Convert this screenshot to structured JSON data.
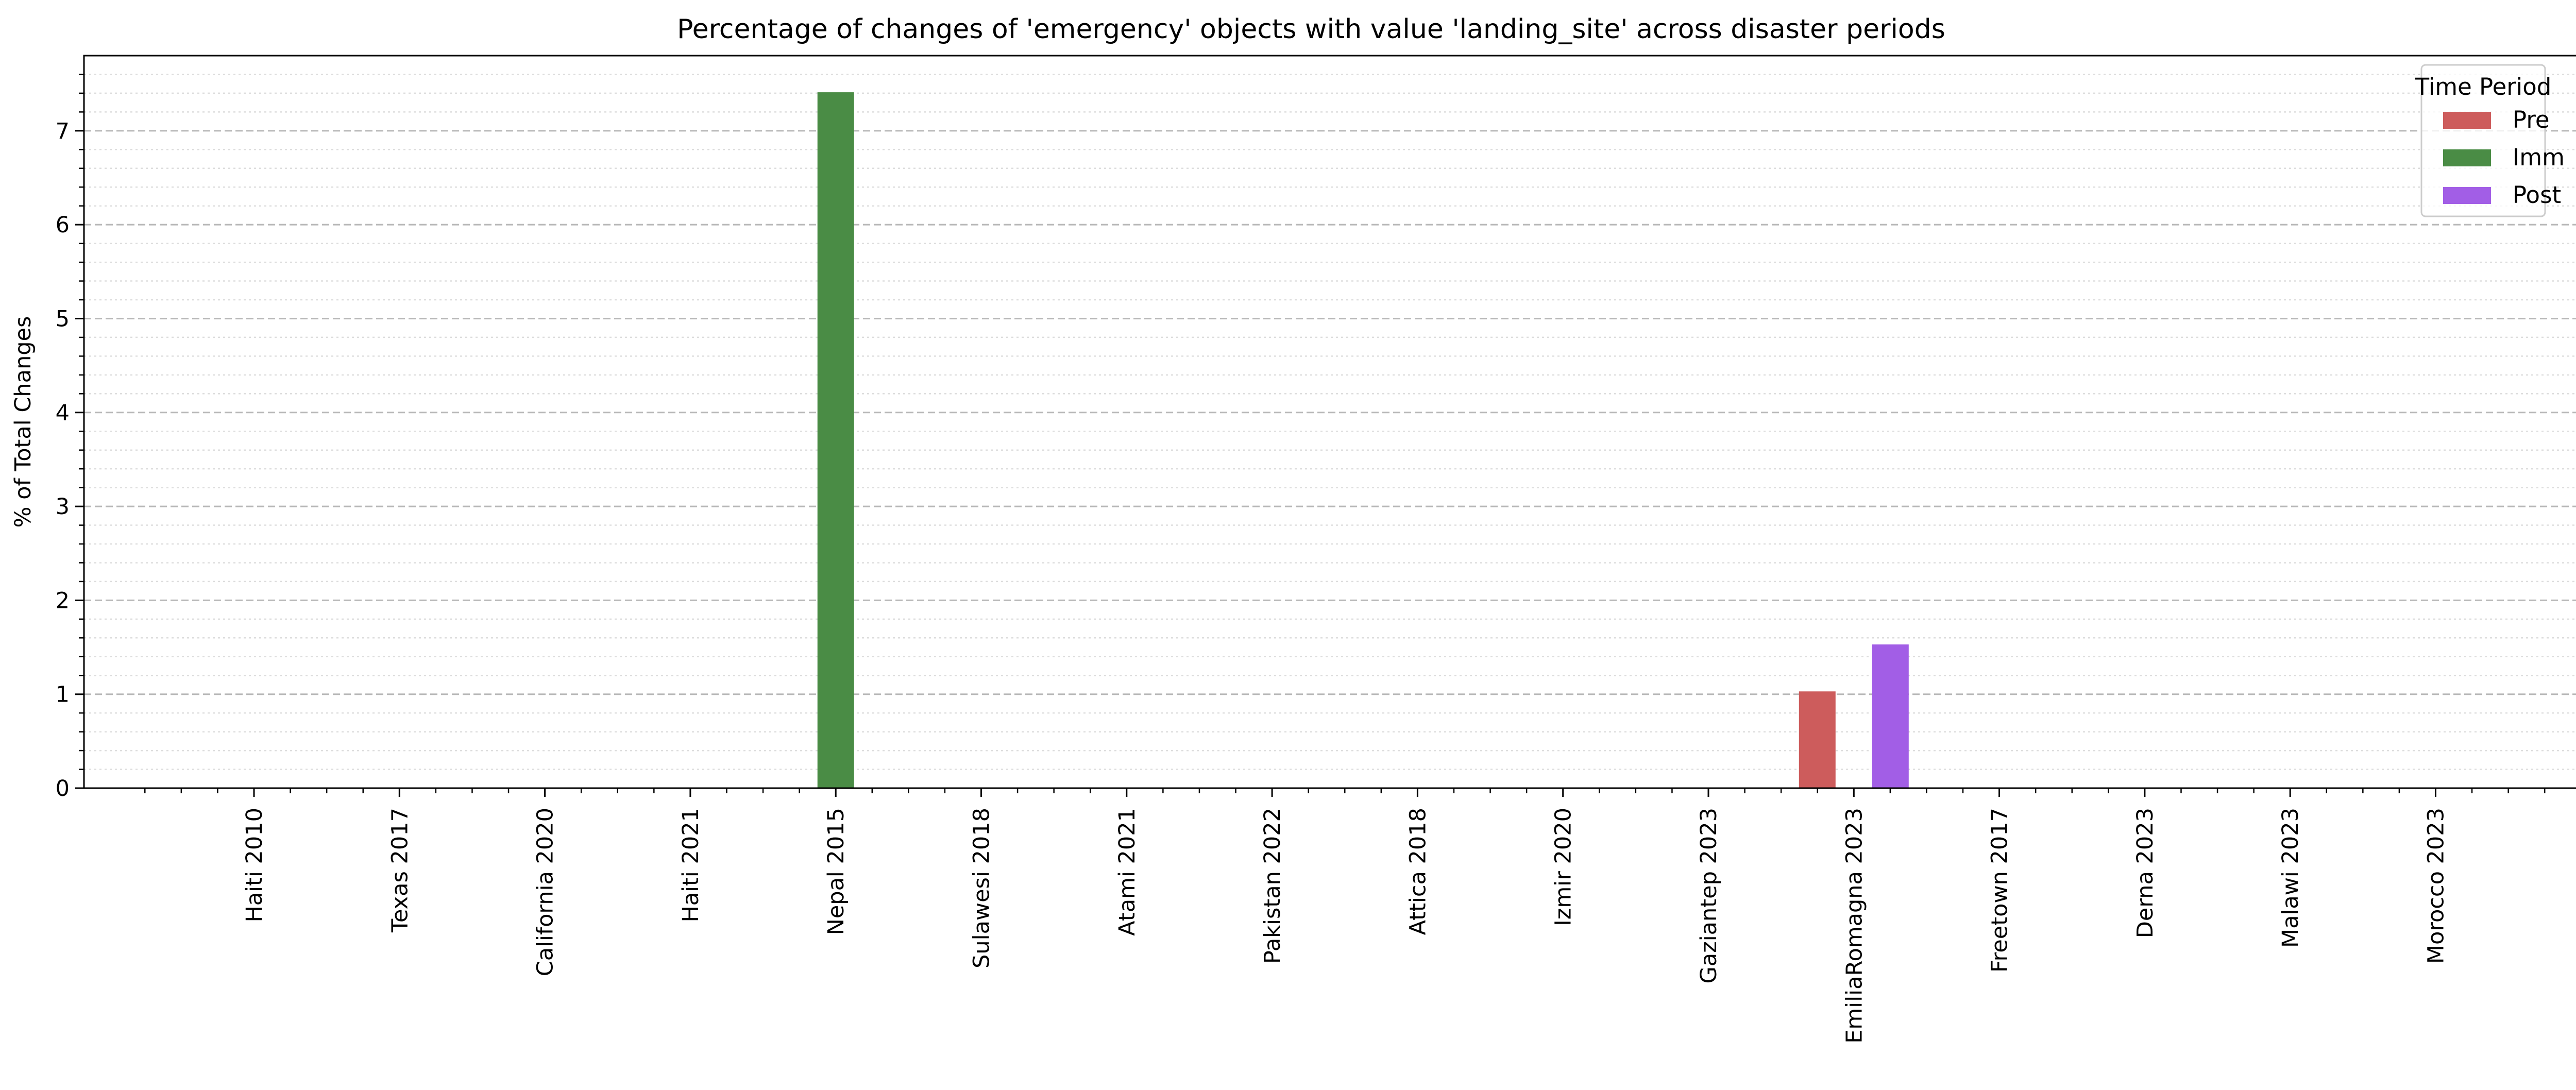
{
  "chart_data": {
    "type": "bar",
    "title": "Percentage of changes of 'emergency' objects with value 'landing_site' across disaster periods",
    "xlabel": "",
    "ylabel": "% of Total Changes",
    "ylim": [
      0,
      7.8
    ],
    "yticks": [
      "0",
      "1",
      "2",
      "3",
      "4",
      "5",
      "6",
      "7"
    ],
    "grid": true,
    "categories": [
      "Haiti 2010",
      "Texas 2017",
      "California 2020",
      "Haiti 2021",
      "Nepal 2015",
      "Sulawesi 2018",
      "Atami 2021",
      "Pakistan 2022",
      "Attica 2018",
      "Izmir 2020",
      "Gaziantep 2023",
      "EmiliaRomagna 2023",
      "Freetown 2017",
      "Derna 2023",
      "Malawi 2023",
      "Morocco 2023"
    ],
    "series": [
      {
        "name": "Pre",
        "color": "#cd5c5c",
        "values": [
          0,
          0,
          0,
          0,
          0,
          0,
          0,
          0,
          0,
          0,
          0,
          1.03,
          0,
          0,
          0,
          0
        ]
      },
      {
        "name": "Imm",
        "color": "#4a8c45",
        "values": [
          0,
          0,
          0,
          0,
          7.41,
          0,
          0,
          0,
          0,
          0,
          0,
          0,
          0,
          0,
          0,
          0
        ]
      },
      {
        "name": "Post",
        "color": "#a25ee6",
        "values": [
          0,
          0,
          0,
          0,
          0,
          0,
          0,
          0,
          0,
          0,
          0,
          1.53,
          0,
          0,
          0,
          0
        ]
      }
    ],
    "legend": {
      "title": "Time Period",
      "placement": "top-right"
    }
  }
}
